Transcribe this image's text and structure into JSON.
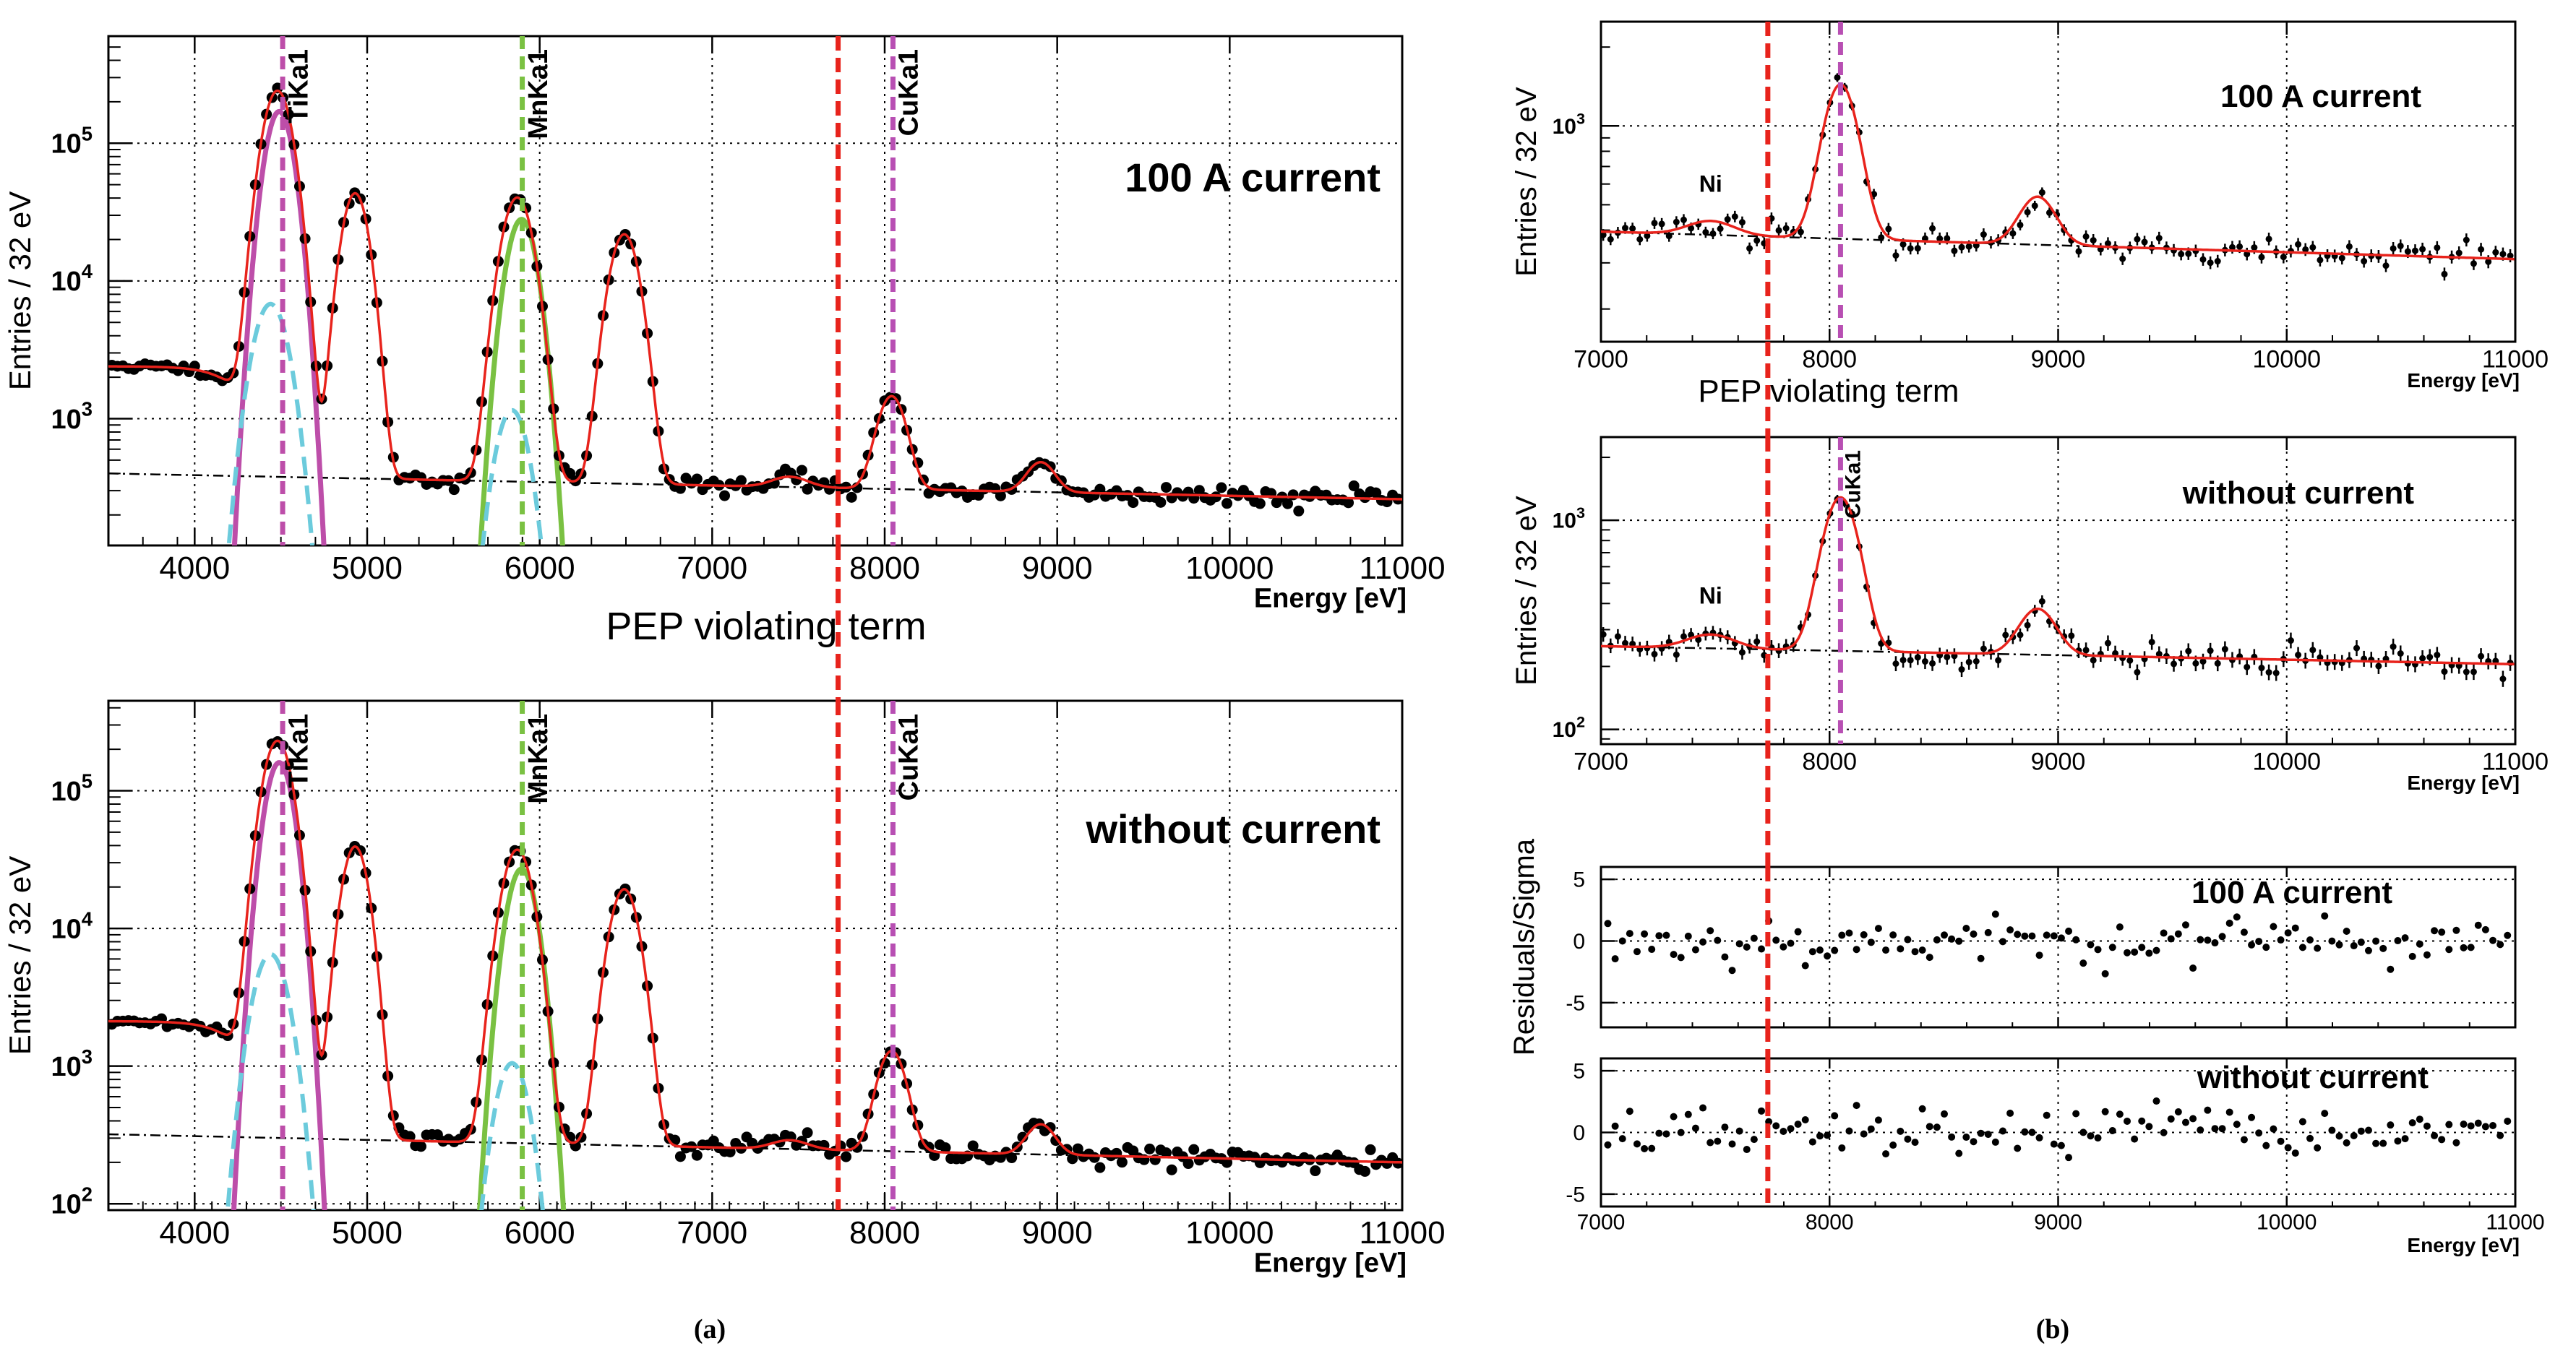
{
  "panel_labels": {
    "a": "(a)",
    "b": "(b)"
  },
  "pep_label": "PEP violating term",
  "axis_titles": {
    "energy": "Energy [eV]",
    "entries": "Entries / 32 eV",
    "residuals": "Residuals/Sigma"
  },
  "colors": {
    "fit": "#e8231c",
    "ti": "#bd4ea9",
    "mn": "#7ac142",
    "escape": "#6ccbdc",
    "cu": "#b84fb3",
    "pep": "#e8231c",
    "points": "#000000",
    "background": "#000000"
  },
  "chart_data": [
    {
      "id": "a_top",
      "type": "scatter",
      "yscale": "log",
      "title": "100 A current",
      "xlabel": "Energy [eV]",
      "ylabel": "Entries / 32 eV",
      "xlim": [
        3500,
        11000
      ],
      "ylim": [
        120,
        600000
      ],
      "xticks": [
        4000,
        5000,
        6000,
        7000,
        8000,
        9000,
        10000,
        11000
      ],
      "ytick_labels": [
        {
          "text": "10",
          "sup": "3",
          "v": 1000
        },
        {
          "text": "10",
          "sup": "4",
          "v": 10000
        },
        {
          "text": "10",
          "sup": "5",
          "v": 100000
        }
      ],
      "lines": [
        {
          "label": "TiKa1",
          "x": 4510,
          "color": "ti"
        },
        {
          "label": "MnKa1",
          "x": 5899,
          "color": "mn"
        },
        {
          "label": "CuKa1",
          "x": 8048,
          "color": "cu"
        }
      ],
      "pep_x": 7730,
      "bg_start": 400,
      "bg_end": 260,
      "peaks": [
        {
          "mu": 4480,
          "sigma": 72,
          "amp": 240000
        },
        {
          "mu": 4930,
          "sigma": 65,
          "amp": 43000
        },
        {
          "mu": 5870,
          "sigma": 75,
          "amp": 40000
        },
        {
          "mu": 6490,
          "sigma": 72,
          "amp": 21500
        },
        {
          "mu": 7450,
          "sigma": 100,
          "amp": 60
        },
        {
          "mu": 8040,
          "sigma": 72,
          "amp": 1150
        },
        {
          "mu": 8905,
          "sigma": 75,
          "amp": 190
        }
      ],
      "shelf": {
        "level": 2000,
        "center": 4300,
        "width": 110
      },
      "components": [
        {
          "name": "ti-component",
          "color": "ti",
          "mu": 4490,
          "sigma": 68,
          "amp": 170000,
          "dash": ""
        },
        {
          "name": "ti-escape-component",
          "color": "escape",
          "mu": 4440,
          "sigma": 85,
          "amp": 6800,
          "dash": "dashed"
        },
        {
          "name": "mn-component",
          "color": "mn",
          "mu": 5895,
          "sigma": 72,
          "amp": 28000,
          "dash": ""
        },
        {
          "name": "mn-escape-component",
          "color": "escape",
          "mu": 5840,
          "sigma": 80,
          "amp": 1150,
          "dash": "dashed"
        }
      ],
      "points_from": 3520,
      "points_to": 10990,
      "points_step": 32,
      "seed": 11
    },
    {
      "id": "a_bottom",
      "type": "scatter",
      "yscale": "log",
      "title": "without current",
      "xlabel": "Energy [eV]",
      "ylabel": "Entries / 32 eV",
      "xlim": [
        3500,
        11000
      ],
      "ylim": [
        90,
        450000
      ],
      "xticks": [
        4000,
        5000,
        6000,
        7000,
        8000,
        9000,
        10000,
        11000
      ],
      "ytick_labels": [
        {
          "text": "10",
          "sup": "2",
          "v": 100
        },
        {
          "text": "10",
          "sup": "3",
          "v": 1000
        },
        {
          "text": "10",
          "sup": "4",
          "v": 10000
        },
        {
          "text": "10",
          "sup": "5",
          "v": 100000
        }
      ],
      "lines": [
        {
          "label": "TiKa1",
          "x": 4510,
          "color": "ti"
        },
        {
          "label": "MnKa1",
          "x": 5899,
          "color": "mn"
        },
        {
          "label": "CuKa1",
          "x": 8048,
          "color": "cu"
        }
      ],
      "pep_x": 7730,
      "bg_start": 320,
      "bg_end": 200,
      "peaks": [
        {
          "mu": 4480,
          "sigma": 72,
          "amp": 230000
        },
        {
          "mu": 4930,
          "sigma": 65,
          "amp": 39000
        },
        {
          "mu": 5870,
          "sigma": 75,
          "amp": 37000
        },
        {
          "mu": 6490,
          "sigma": 72,
          "amp": 19000
        },
        {
          "mu": 7450,
          "sigma": 100,
          "amp": 40
        },
        {
          "mu": 8040,
          "sigma": 72,
          "amp": 1050
        },
        {
          "mu": 8905,
          "sigma": 75,
          "amp": 150
        }
      ],
      "shelf": {
        "level": 1800,
        "center": 4300,
        "width": 110
      },
      "components": [
        {
          "name": "ti-component",
          "color": "ti",
          "mu": 4490,
          "sigma": 68,
          "amp": 160000,
          "dash": ""
        },
        {
          "name": "ti-escape-component",
          "color": "escape",
          "mu": 4440,
          "sigma": 85,
          "amp": 6500,
          "dash": "dashed"
        },
        {
          "name": "mn-component",
          "color": "mn",
          "mu": 5895,
          "sigma": 72,
          "amp": 27000,
          "dash": ""
        },
        {
          "name": "mn-escape-component",
          "color": "escape",
          "mu": 5840,
          "sigma": 80,
          "amp": 1050,
          "dash": "dashed"
        }
      ],
      "points_from": 3520,
      "points_to": 10990,
      "points_step": 32,
      "seed": 23
    },
    {
      "id": "b_top",
      "type": "scatter",
      "yscale": "log",
      "title": "100 A current",
      "xlabel": "Energy [eV]",
      "ylabel": "Entries / 32 eV",
      "xlim": [
        7000,
        11000
      ],
      "ylim": [
        150,
        2500
      ],
      "xticks": [
        7000,
        8000,
        9000,
        10000,
        11000
      ],
      "ytick_labels": [
        {
          "text": "10",
          "sup": "3",
          "v": 1000
        }
      ],
      "lines": [
        {
          "label": "",
          "x": 8048,
          "color": "cu"
        }
      ],
      "pep_x": 7730,
      "bg_start": 395,
      "bg_end": 310,
      "peaks": [
        {
          "mu": 7480,
          "sigma": 100,
          "amp": 50
        },
        {
          "mu": 8048,
          "sigma": 70,
          "amp": 1070
        },
        {
          "mu": 8910,
          "sigma": 75,
          "amp": 185
        }
      ],
      "annotations": [
        {
          "text": "Ni",
          "x": 7480,
          "y": 560
        }
      ],
      "points_from": 7010,
      "points_to": 10990,
      "points_step": 32,
      "seed": 37
    },
    {
      "id": "b_middle",
      "type": "scatter",
      "yscale": "log",
      "title": "without current",
      "xlabel": "Energy [eV]",
      "ylabel": "Entries / 32 eV",
      "xlim": [
        7000,
        11000
      ],
      "ylim": [
        85,
        2500
      ],
      "xticks": [
        7000,
        8000,
        9000,
        10000,
        11000
      ],
      "ytick_labels": [
        {
          "text": "10",
          "sup": "2",
          "v": 100
        },
        {
          "text": "10",
          "sup": "3",
          "v": 1000
        }
      ],
      "lines": [
        {
          "label": "CuKa1",
          "x": 8048,
          "color": "cu"
        }
      ],
      "pep_x": 7730,
      "bg_start": 250,
      "bg_end": 205,
      "peaks": [
        {
          "mu": 7480,
          "sigma": 100,
          "amp": 40
        },
        {
          "mu": 8048,
          "sigma": 70,
          "amp": 1050
        },
        {
          "mu": 8910,
          "sigma": 75,
          "amp": 150
        }
      ],
      "annotations": [
        {
          "text": "Ni",
          "x": 7480,
          "y": 400
        }
      ],
      "points_from": 7010,
      "points_to": 10990,
      "points_step": 32,
      "seed": 41
    },
    {
      "id": "b_res_top",
      "type": "scatter",
      "yscale": "linear",
      "title": "100 A current",
      "xlabel": "",
      "ylabel": "Residuals/Sigma",
      "xlim": [
        7000,
        11000
      ],
      "ylim": [
        -7,
        6
      ],
      "xticks": [
        7000,
        8000,
        9000,
        10000,
        11000
      ],
      "ytick_values": [
        -5,
        0,
        5
      ],
      "pep_x": 7730,
      "residuals_from": 7030,
      "residuals_to": 10990,
      "residuals_step": 32,
      "seed": 53
    },
    {
      "id": "b_res_bottom",
      "type": "scatter",
      "yscale": "linear",
      "title": "without current",
      "xlabel": "Energy [eV]",
      "ylabel": "",
      "xlim": [
        7000,
        11000
      ],
      "ylim": [
        -6,
        6
      ],
      "xticks": [
        7000,
        8000,
        9000,
        10000,
        11000
      ],
      "ytick_values": [
        -5,
        0,
        5
      ],
      "pep_x": 7730,
      "residuals_from": 7030,
      "residuals_to": 10990,
      "residuals_step": 32,
      "seed": 67
    }
  ]
}
